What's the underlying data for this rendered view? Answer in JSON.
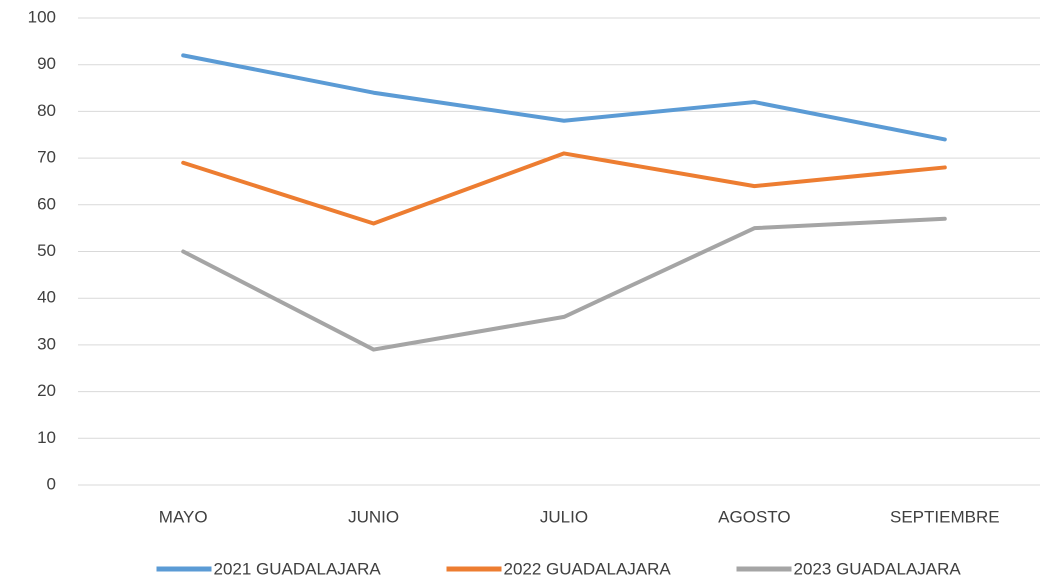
{
  "chart_data": {
    "type": "line",
    "categories": [
      "MAYO",
      "JUNIO",
      "JULIO",
      "AGOSTO",
      "SEPTIEMBRE"
    ],
    "series": [
      {
        "name": "2021 GUADALAJARA",
        "color": "#5b9bd5",
        "values": [
          92,
          84,
          78,
          82,
          74
        ]
      },
      {
        "name": "2022 GUADALAJARA",
        "color": "#ed7d31",
        "values": [
          69,
          56,
          71,
          64,
          68
        ]
      },
      {
        "name": "2023 GUADALAJARA",
        "color": "#a5a5a5",
        "values": [
          50,
          29,
          36,
          55,
          57
        ]
      }
    ],
    "ylim": [
      0,
      100
    ],
    "yticks": [
      0,
      10,
      20,
      30,
      40,
      50,
      60,
      70,
      80,
      90,
      100
    ],
    "grid": true,
    "legend": "bottom"
  }
}
